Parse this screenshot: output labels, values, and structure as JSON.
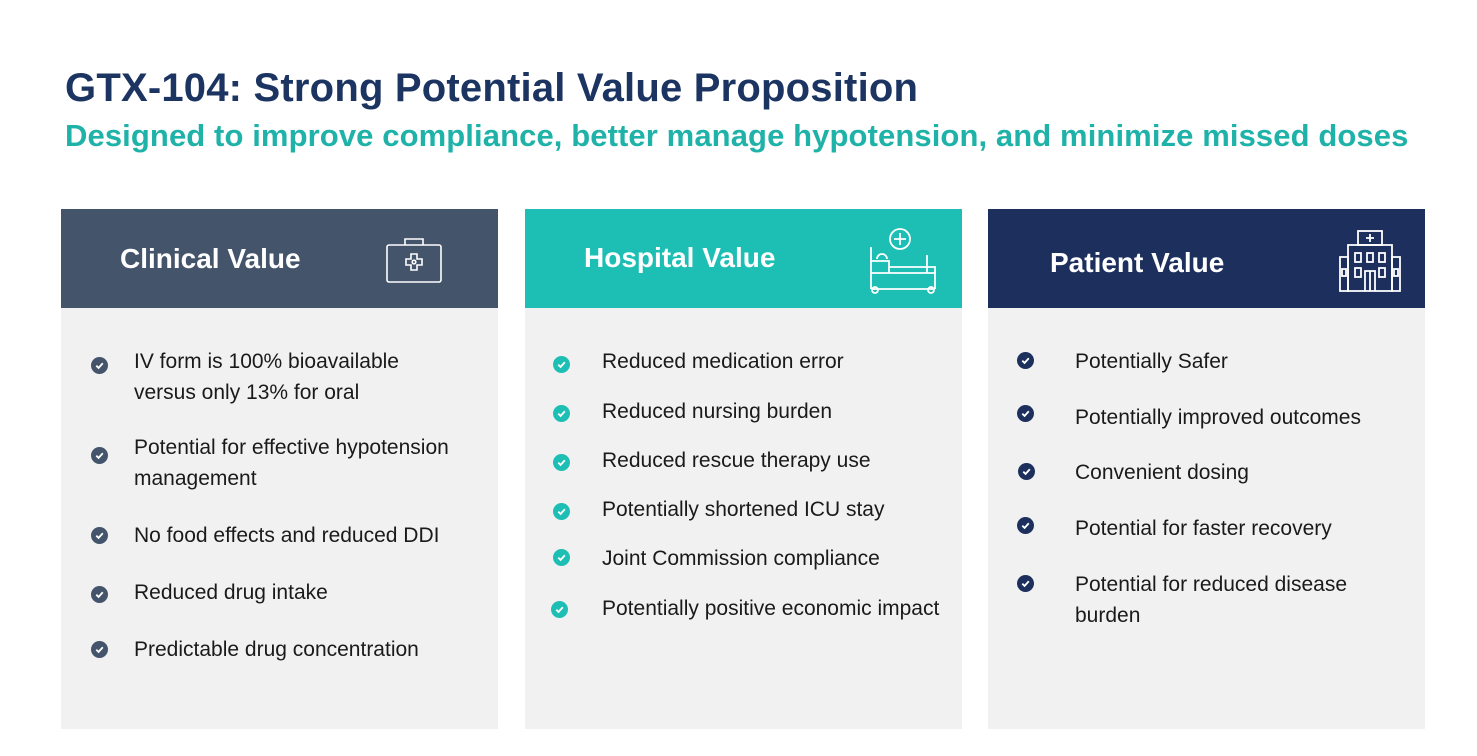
{
  "title": "GTX-104: Strong Potential Value Proposition",
  "subtitle": "Designed to improve compliance, better manage hypotension, and minimize missed doses",
  "colors": {
    "title": "#1b3461",
    "subtitle": "#1fb2a8",
    "clinical": "#44546a",
    "hospital": "#1dbfb4",
    "patient": "#1d305d",
    "panel_bg": "#f1f1f1"
  },
  "columns": [
    {
      "label": "Clinical Value",
      "icon": "medical-kit-icon",
      "items": [
        [
          "IV form is 100% bioavailable",
          "versus only 13% for oral"
        ],
        [
          "Potential for effective hypotension",
          "management"
        ],
        [
          "No food effects and reduced DDI"
        ],
        [
          "Reduced drug intake"
        ],
        [
          "Predictable drug concentration"
        ]
      ]
    },
    {
      "label": "Hospital Value",
      "icon": "hospital-bed-icon",
      "items": [
        [
          "Reduced medication error"
        ],
        [
          "Reduced nursing burden"
        ],
        [
          "Reduced rescue therapy use"
        ],
        [
          "Potentially shortened ICU stay"
        ],
        [
          "Joint Commission compliance"
        ],
        [
          "Potentially positive economic impact"
        ]
      ]
    },
    {
      "label": "Patient Value",
      "icon": "hospital-building-icon",
      "items": [
        [
          "Potentially Safer"
        ],
        [
          "Potentially improved outcomes"
        ],
        [
          "Convenient dosing"
        ],
        [
          "Potential for faster recovery"
        ],
        [
          "Potential for reduced disease",
          "burden"
        ]
      ]
    }
  ]
}
